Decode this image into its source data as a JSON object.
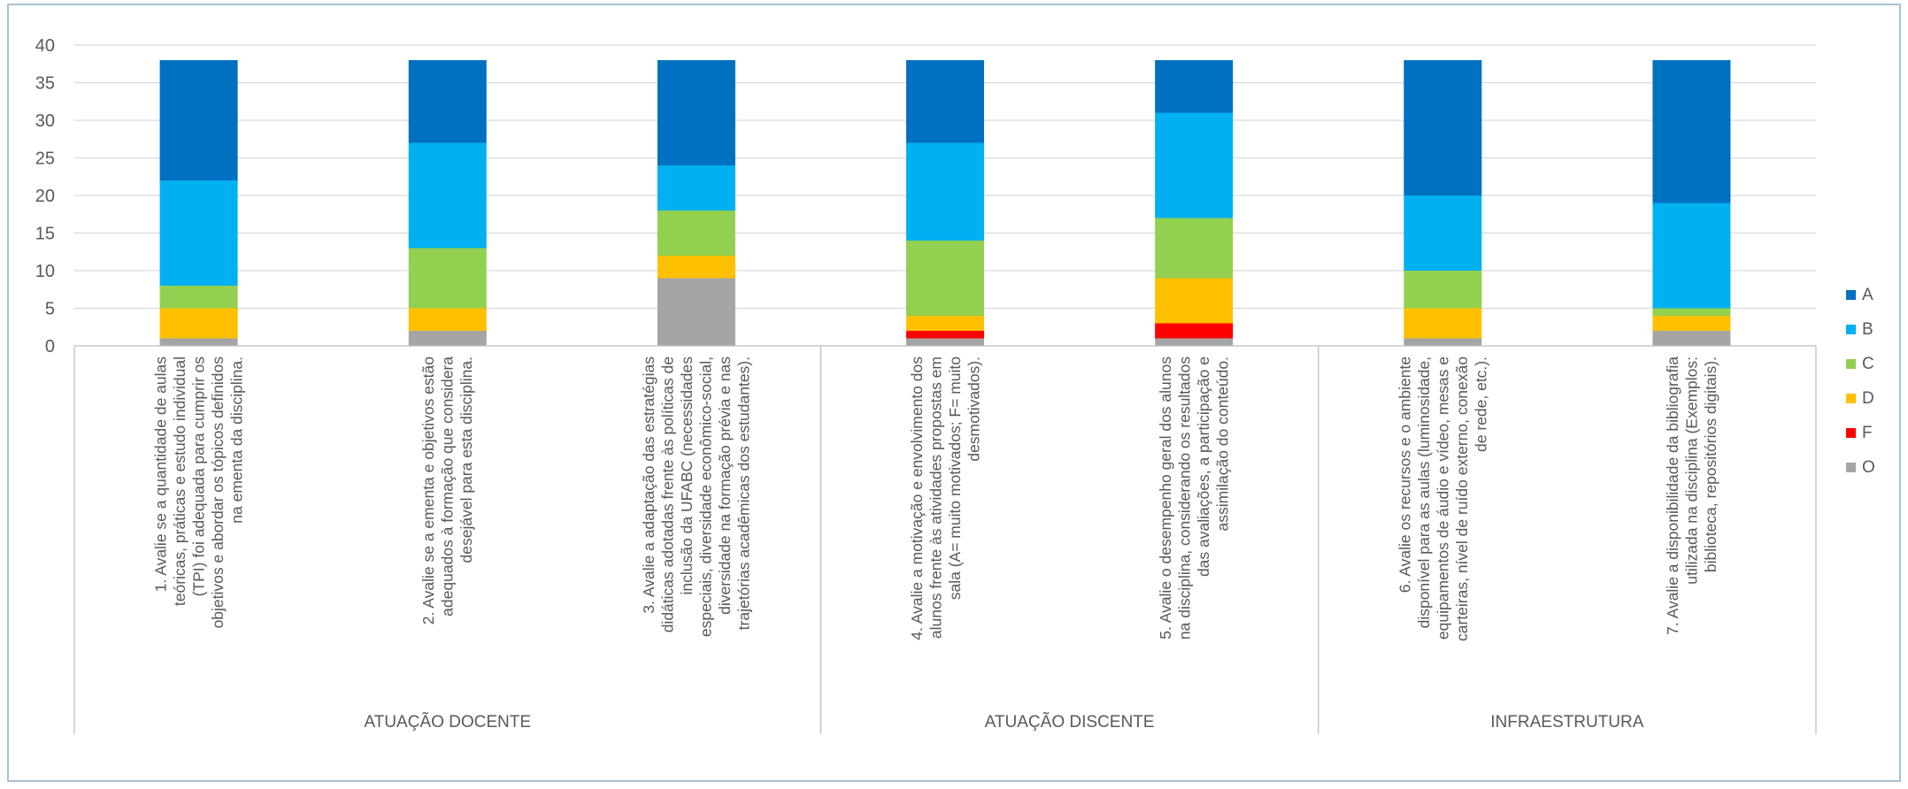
{
  "chart_data": {
    "type": "bar",
    "stacked": true,
    "ylim": [
      0,
      40
    ],
    "yticks": [
      0,
      5,
      10,
      15,
      20,
      25,
      30,
      35,
      40
    ],
    "grid": true,
    "legend_position": "right",
    "categories": [
      "1. Avalie se a quantidade de aulas teóricas, práticas e estudo individual (TPI) foi adequada para cumprir os objetivos e abordar os tópicos definidos na ementa da disciplina.",
      "2. Avalie se a ementa e objetivos estão adequados à formação que considera desejável para esta disciplina.",
      "3. Avalie a adaptação das estratégias didáticas adotadas frente às políticas de inclusão da UFABC (necessidades especiais, diversidade econômico-social, diversidade na formação prévia e nas trajetórias acadêmicas dos estudantes).",
      "4. Avalie a motivação e envolvimento dos alunos frente às atividades propostas em sala (A= muito motivados; F= muito desmotivados).",
      "5. Avalie o desempenho geral dos alunos na disciplina, considerando os resultados das avaliações, a participação e assimilação do conteúdo.",
      "6. Avalie os recursos e o ambiente disponível para as aulas (luminosidade, equipamentos de áudio e vídeo, mesas e carteiras, nível de ruído externo, conexão de rede, etc.).",
      "7. Avalie a disponibilidade da bibliografia utilizada na disciplina (Exemplos: biblioteca, repositórios digitais)."
    ],
    "category_lines": [
      [
        "1. Avalie se a quantidade de aulas",
        "teóricas, práticas e estudo individual",
        "(TPI) foi adequada para cumprir os",
        "objetivos e abordar os tópicos definidos",
        "na ementa da disciplina."
      ],
      [
        "2. Avalie se a ementa e objetivos estão",
        "adequados à formação que considera",
        "desejável para esta disciplina."
      ],
      [
        "3. Avalie a adaptação das estratégias",
        "didáticas adotadas frente às políticas de",
        "inclusão da UFABC (necessidades",
        "especiais, diversidade econômico-social,",
        "diversidade na formação prévia e nas",
        "trajetórias acadêmicas dos estudantes)."
      ],
      [
        "4. Avalie a motivação e envolvimento dos",
        "alunos frente às atividades propostas em",
        "sala (A= muito motivados; F= muito",
        "desmotivados)."
      ],
      [
        "5. Avalie o desempenho geral dos alunos",
        "na disciplina, considerando os resultados",
        "das avaliações, a participação e",
        "assimilação do conteúdo."
      ],
      [
        "6. Avalie os recursos e o ambiente",
        "disponível para as aulas (luminosidade,",
        "equipamentos de áudio e vídeo, mesas e",
        "carteiras, nível de ruído externo, conexão",
        "de rede, etc.)."
      ],
      [
        "7. Avalie a disponibilidade da bibliografia",
        "utilizada na disciplina (Exemplos:",
        "biblioteca, repositórios digitais)."
      ]
    ],
    "groups": [
      {
        "label": "ATUAÇÃO DOCENTE",
        "start": 0,
        "end": 2
      },
      {
        "label": "ATUAÇÃO DISCENTE",
        "start": 3,
        "end": 4
      },
      {
        "label": "INFRAESTRUTURA",
        "start": 5,
        "end": 6
      }
    ],
    "series": [
      {
        "name": "O",
        "color": "#a5a5a5",
        "values": [
          1,
          2,
          9,
          1,
          1,
          1,
          2
        ]
      },
      {
        "name": "F",
        "color": "#ff0000",
        "values": [
          0,
          0,
          0,
          1,
          2,
          0,
          0
        ]
      },
      {
        "name": "D",
        "color": "#ffc000",
        "values": [
          4,
          3,
          3,
          2,
          6,
          4,
          2
        ]
      },
      {
        "name": "C",
        "color": "#92d050",
        "values": [
          3,
          8,
          6,
          10,
          8,
          5,
          1
        ]
      },
      {
        "name": "B",
        "color": "#00b0f0",
        "values": [
          14,
          14,
          6,
          13,
          14,
          10,
          14
        ]
      },
      {
        "name": "A",
        "color": "#0070c0",
        "values": [
          16,
          11,
          14,
          11,
          7,
          18,
          19
        ]
      }
    ],
    "legend_order": [
      "A",
      "B",
      "C",
      "D",
      "F",
      "O"
    ]
  }
}
